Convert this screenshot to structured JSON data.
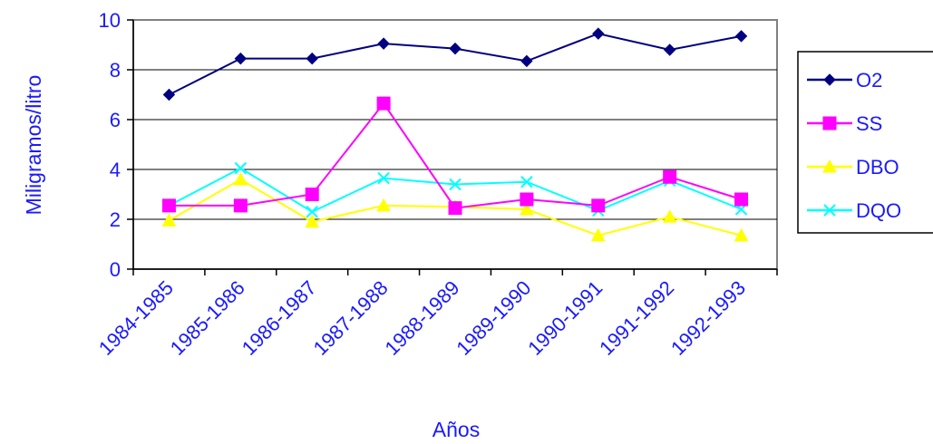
{
  "chart_data": {
    "type": "line",
    "title": "",
    "xlabel": "Años",
    "ylabel": "Miligramos/litro",
    "categories": [
      "1984-1985",
      "1985-1986",
      "1986-1987",
      "1987-1988",
      "1988-1989",
      "1989-1990",
      "1990-1991",
      "1991-1992",
      "1992-1993"
    ],
    "ylim": [
      0,
      10
    ],
    "yticks": [
      0,
      2,
      4,
      6,
      8,
      10
    ],
    "grid": "horizontal",
    "legend_position": "right",
    "series": [
      {
        "name": "O2",
        "color": "#000080",
        "marker": "diamond",
        "values": [
          7.0,
          8.45,
          8.45,
          9.05,
          8.85,
          8.35,
          9.45,
          8.8,
          9.35
        ]
      },
      {
        "name": "SS",
        "color": "#ff00ff",
        "marker": "square",
        "values": [
          2.55,
          2.55,
          3.0,
          6.65,
          2.45,
          2.8,
          2.55,
          3.7,
          2.8
        ]
      },
      {
        "name": "DBO",
        "color": "#ffff00",
        "marker": "triangle",
        "values": [
          1.95,
          3.6,
          1.9,
          2.55,
          2.5,
          2.4,
          1.35,
          2.1,
          1.35
        ]
      },
      {
        "name": "DQO",
        "color": "#00ffff",
        "marker": "x",
        "values": [
          2.55,
          4.05,
          2.3,
          3.65,
          3.4,
          3.5,
          2.35,
          3.55,
          2.4
        ]
      }
    ]
  }
}
